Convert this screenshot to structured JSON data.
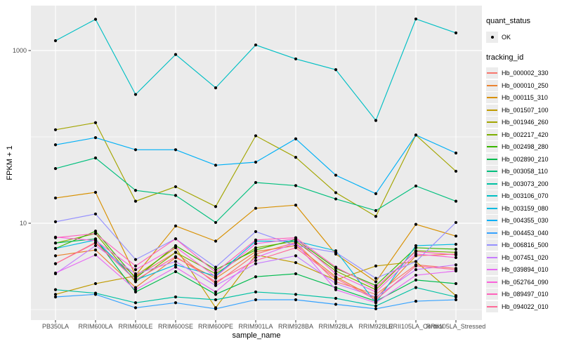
{
  "chart_data": {
    "type": "line",
    "title": "",
    "xlabel": "sample_name",
    "ylabel": "FPKM + 1",
    "y_scale": "log10",
    "y_ticks": [
      10,
      1000
    ],
    "y_minor_gridlines": [
      1,
      100
    ],
    "ylim_log10": [
      -0.1,
      3.55
    ],
    "grid": "on",
    "legend_position": "right",
    "x_categories": [
      "PB350LA",
      "RRIM600LA",
      "RRIM600LE",
      "RRIM600SE",
      "RRIM600PE",
      "RRIM901LA",
      "RRIM928BA",
      "RRIM928LA",
      "RRIM928LE",
      "RRII105LA_Control",
      "RRII105LA_Stressed"
    ],
    "legend": {
      "quant_status": {
        "title": "quant_status",
        "items": [
          {
            "label": "OK",
            "marker": "point"
          }
        ]
      },
      "tracking_id": {
        "title": "tracking_id"
      }
    },
    "point_color": "#000000",
    "series": [
      {
        "tracking_id": "Hb_000002_330",
        "color": "#F8766D",
        "values": [
          3.4,
          6.0,
          2.4,
          4.6,
          2.0,
          4.4,
          6.0,
          2.1,
          1.5,
          3.3,
          3.0
        ]
      },
      {
        "tracking_id": "Hb_000010_250",
        "color": "#EA8331",
        "values": [
          4.2,
          4.9,
          1.8,
          4.0,
          2.3,
          4.7,
          5.5,
          2.4,
          1.35,
          4.2,
          4.4
        ]
      },
      {
        "tracking_id": "Hb_000115_310",
        "color": "#D89000",
        "values": [
          19.6,
          22.8,
          2.5,
          9.3,
          6.2,
          14.9,
          16.2,
          4.4,
          2.1,
          9.7,
          7.1
        ]
      },
      {
        "tracking_id": "Hb_001507_100",
        "color": "#C09B00",
        "values": [
          1.5,
          2.0,
          2.45,
          5.2,
          1.05,
          4.3,
          3.5,
          2.2,
          3.2,
          3.6,
          1.45
        ]
      },
      {
        "tracking_id": "Hb_001946_260",
        "color": "#A3A500",
        "values": [
          121,
          146,
          18,
          26.5,
          15.6,
          103,
          58,
          22.6,
          12,
          105,
          40
        ]
      },
      {
        "tracking_id": "Hb_002217_420",
        "color": "#7CAE00",
        "values": [
          5.9,
          7.6,
          2.1,
          4.6,
          2.6,
          5.2,
          6.2,
          2.8,
          1.7,
          4.8,
          4.6
        ]
      },
      {
        "tracking_id": "Hb_002498_280",
        "color": "#39B600",
        "values": [
          5.1,
          8.1,
          2.3,
          5.5,
          2.9,
          4.9,
          6.5,
          3.0,
          1.9,
          5.2,
          5.0
        ]
      },
      {
        "tracking_id": "Hb_002890_210",
        "color": "#00BB4E",
        "values": [
          5.9,
          6.6,
          1.6,
          2.75,
          1.5,
          2.4,
          2.6,
          1.8,
          1.25,
          2.2,
          2.0
        ]
      },
      {
        "tracking_id": "Hb_003058_110",
        "color": "#00BF7D",
        "values": [
          43,
          57,
          24,
          21,
          10.2,
          29.6,
          27.3,
          19.1,
          14,
          27,
          18
        ]
      },
      {
        "tracking_id": "Hb_003073_200",
        "color": "#00C1A3",
        "values": [
          1.7,
          1.55,
          1.2,
          1.4,
          1.3,
          1.6,
          1.5,
          1.35,
          1.1,
          1.8,
          1.4
        ]
      },
      {
        "tracking_id": "Hb_003106_070",
        "color": "#00BFC4",
        "values": [
          1300,
          2300,
          310,
          900,
          370,
          1160,
          800,
          600,
          155,
          2320,
          1600
        ]
      },
      {
        "tracking_id": "Hb_003159_080",
        "color": "#00BAE0",
        "values": [
          5.1,
          6.4,
          2.2,
          3.3,
          2.45,
          6.2,
          6.2,
          4.8,
          1.2,
          5.5,
          5.7
        ]
      },
      {
        "tracking_id": "Hb_004355_030",
        "color": "#00B0F6",
        "values": [
          81,
          98,
          71,
          71,
          47,
          51,
          95,
          36,
          22,
          105,
          65
        ]
      },
      {
        "tracking_id": "Hb_004453_040",
        "color": "#35A2FF",
        "values": [
          1.4,
          1.5,
          1.05,
          1.2,
          1.02,
          1.3,
          1.3,
          1.15,
          1.02,
          1.25,
          1.3
        ]
      },
      {
        "tracking_id": "Hb_006816_500",
        "color": "#9590FF",
        "values": [
          10.4,
          12.8,
          3.8,
          6.6,
          3.1,
          8.0,
          5.5,
          4.6,
          2.3,
          3.6,
          10.2
        ]
      },
      {
        "tracking_id": "Hb_007451_020",
        "color": "#C77CFF",
        "values": [
          2.6,
          5.5,
          2.6,
          3.6,
          1.9,
          3.4,
          4.2,
          2.0,
          1.4,
          2.9,
          3.3
        ]
      },
      {
        "tracking_id": "Hb_039894_010",
        "color": "#E76BF3",
        "values": [
          2.65,
          4.3,
          1.7,
          3.1,
          1.6,
          4.0,
          5.9,
          1.7,
          1.2,
          2.5,
          2.8
        ]
      },
      {
        "tracking_id": "Hb_052764_090",
        "color": "#FA62DB",
        "values": [
          6.9,
          6.3,
          2.9,
          5.3,
          2.4,
          5.8,
          6.6,
          2.6,
          1.6,
          4.4,
          4.0
        ]
      },
      {
        "tracking_id": "Hb_089497_010",
        "color": "#FF62BC",
        "values": [
          6.8,
          7.6,
          3.2,
          6.6,
          2.7,
          6.4,
          6.8,
          3.1,
          1.8,
          4.7,
          4.3
        ]
      },
      {
        "tracking_id": "Hb_094022_010",
        "color": "#FF6A98",
        "values": [
          3.4,
          5.9,
          2.2,
          4.1,
          2.1,
          3.7,
          5.2,
          2.3,
          1.3,
          3.2,
          2.9
        ]
      }
    ]
  },
  "colors": {
    "panel_bg": "#EBEBEB",
    "gridline": "#FFFFFF",
    "tick_mark": "#333333",
    "tick_text": "#4D4D4D",
    "legend_key_bg": "#ECECEC",
    "point": "#000000"
  }
}
